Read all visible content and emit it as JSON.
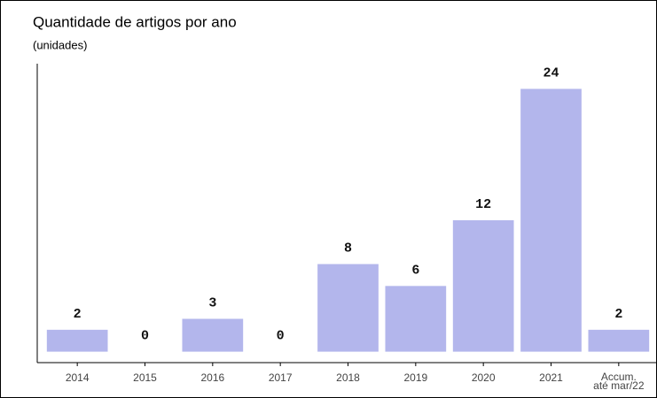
{
  "chart_data": {
    "type": "bar",
    "title": "Quantidade de artigos por ano",
    "subtitle": "(unidades)",
    "categories": [
      "2014",
      "2015",
      "2016",
      "2017",
      "2018",
      "2019",
      "2020",
      "2021",
      "Accum.\naté mar/22"
    ],
    "values": [
      2,
      0,
      3,
      0,
      8,
      6,
      12,
      24,
      2
    ],
    "color": "#b3b6ec",
    "ylim": [
      -1,
      26.3
    ]
  }
}
